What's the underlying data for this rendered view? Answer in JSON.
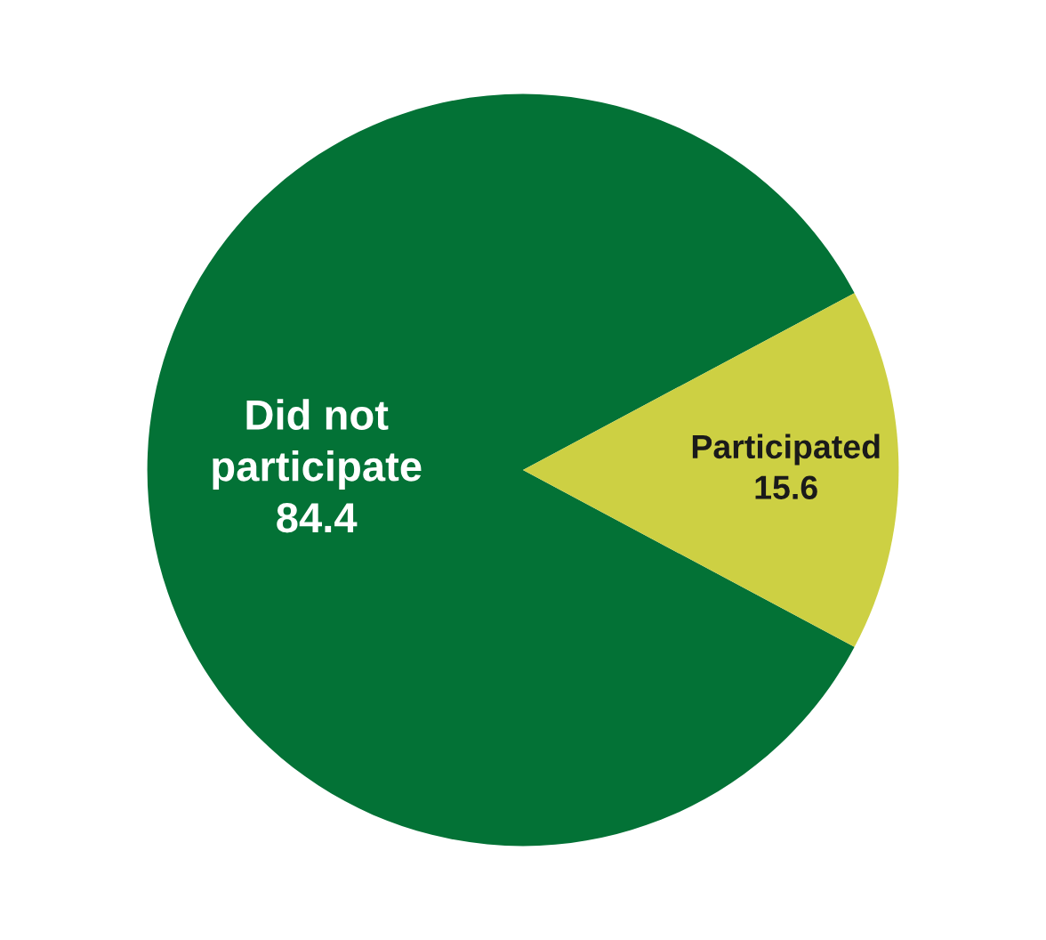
{
  "chart_data": {
    "type": "pie",
    "categories": [
      "Did not participate",
      "Participated"
    ],
    "values": [
      84.4,
      15.6
    ],
    "colors": [
      "#037236",
      "#cdd043"
    ],
    "data_labels": true,
    "legend": false
  }
}
